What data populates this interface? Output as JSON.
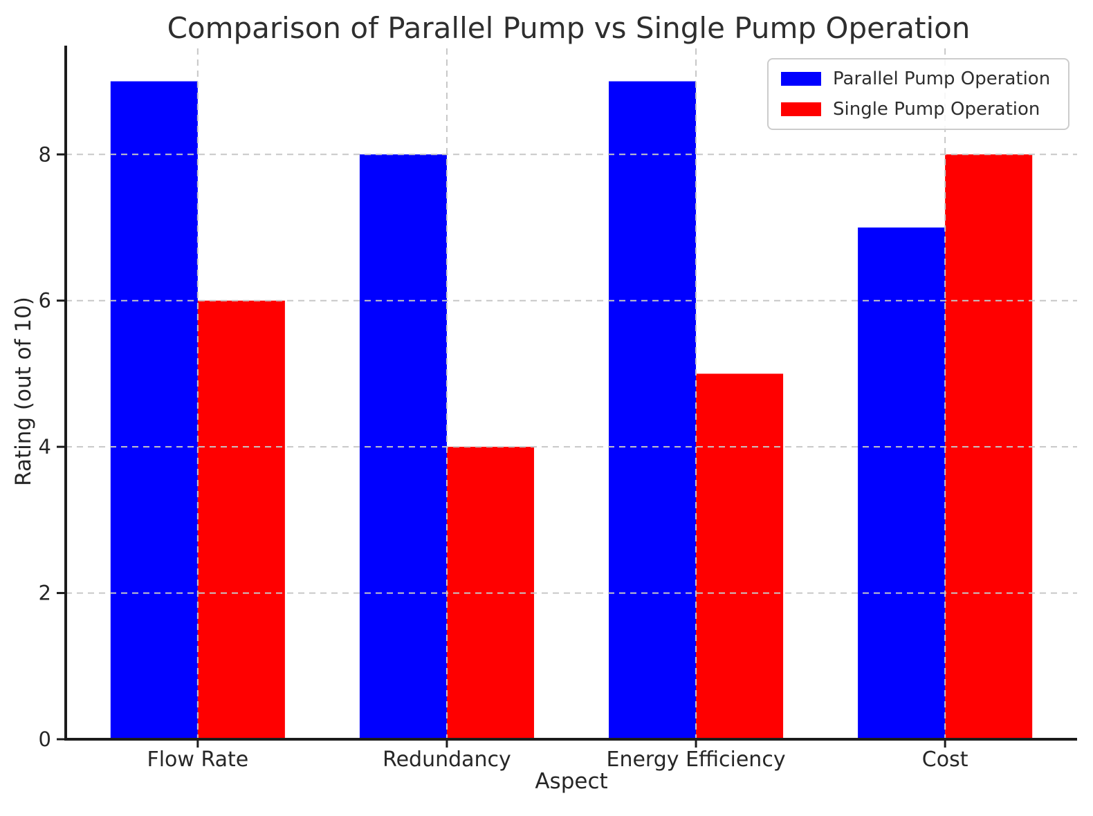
{
  "chart_data": {
    "type": "bar",
    "title": "Comparison of Parallel Pump vs Single Pump Operation",
    "xlabel": "Aspect",
    "ylabel": "Rating (out of 10)",
    "categories": [
      "Flow Rate",
      "Redundancy",
      "Energy Efficiency",
      "Cost"
    ],
    "series": [
      {
        "name": "Parallel Pump Operation",
        "color": "#0000ff",
        "values": [
          9,
          8,
          9,
          7
        ]
      },
      {
        "name": "Single Pump Operation",
        "color": "#ff0000",
        "values": [
          6,
          4,
          5,
          8
        ]
      }
    ],
    "yticks": [
      0,
      2,
      4,
      6,
      8
    ],
    "ylim": [
      0,
      9.45
    ],
    "bar_width": 0.35,
    "grid": true,
    "grid_style": "dashed",
    "grid_color": "#c7c7c7",
    "axis_color": "#1c1c1c",
    "legend_position": "upper right"
  }
}
